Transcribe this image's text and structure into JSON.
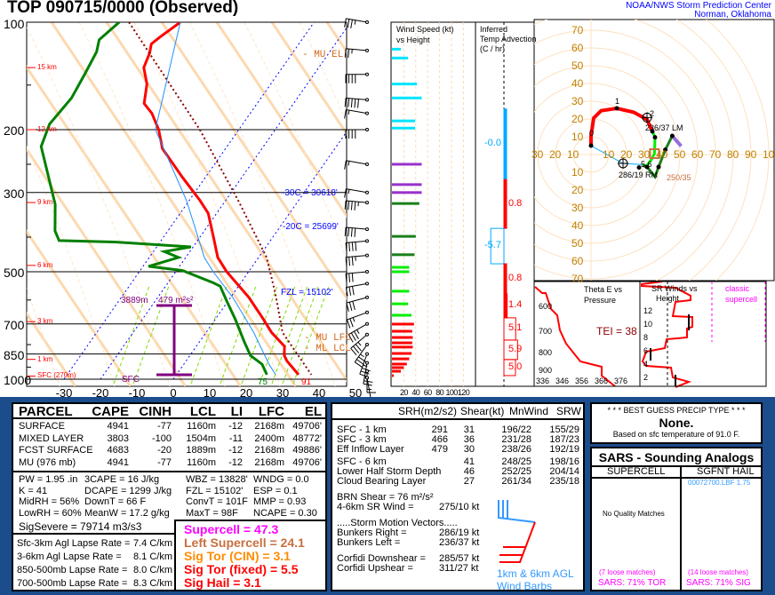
{
  "header": {
    "title": "TOP   090715/0000  (Observed)",
    "org": "NOAA/NWS Storm Prediction Center",
    "loc": "Norman, Oklahoma"
  },
  "skewt": {
    "pressure_labels": [
      "100",
      "200",
      "300",
      "500",
      "700",
      "850",
      "1000"
    ],
    "height_labels": [
      {
        "p": 134,
        "t": "15 km"
      },
      {
        "p": 200,
        "t": "12 km"
      },
      {
        "p": 320,
        "t": "9 km"
      },
      {
        "p": 480,
        "t": "6 km"
      },
      {
        "p": 690,
        "t": "3 km"
      },
      {
        "p": 880,
        "t": "1 km"
      },
      {
        "p": 980,
        "t": "SFC (270m)"
      }
    ],
    "temp_ticks": [
      "-30",
      "-20",
      "-10",
      "0",
      "10",
      "20",
      "30",
      "40",
      "50"
    ],
    "mu_el": "- MU EL",
    "mu_lfc": "- MU LFC",
    "ml_lcl": "- ML LCL",
    "iso30": "-30C = 30618'",
    "iso20": "-20C = 25699'",
    "fzl": "FZL = 15102'",
    "eff_top": "3889m",
    "eff_srh": "479 m²s²",
    "sfc": "SFC",
    "sfc_td": "75",
    "sfc_t": "91"
  },
  "chart_data": {
    "type": "line",
    "title": "Skew-T log-P sounding",
    "xlabel": "Temperature (C)",
    "ylabel": "Pressure (mb)",
    "xlim": [
      -30,
      50
    ],
    "ylim": [
      1000,
      100
    ],
    "series": [
      {
        "name": "temperature",
        "color": "#ff0000",
        "p": [
          100,
          110,
          115,
          122,
          134,
          149,
          169,
          180,
          200,
          226,
          272,
          316,
          343,
          401,
          456,
          500,
          590,
          670,
          740,
          809,
          858,
          888,
          971
        ],
        "t": [
          -66.7,
          -69.4,
          -70.5,
          -69.2,
          -68,
          -64,
          -61,
          -57,
          -52,
          -47.3,
          -36.3,
          -27,
          -22.3,
          -16.2,
          -11.2,
          -6,
          5,
          12.4,
          18,
          24.2,
          25.9,
          27.6,
          33.5
        ]
      },
      {
        "name": "dewpoint",
        "color": "#008000",
        "p": [
          100,
          112,
          121,
          139,
          163,
          193,
          223,
          324,
          384,
          409,
          413,
          426,
          439,
          456,
          483,
          496,
          537,
          549,
          606,
          681,
          786,
          858,
          908,
          971
        ],
        "t": [
          -83.5,
          -85.6,
          -84,
          -83,
          -82,
          -83,
          -81,
          -66,
          -61,
          -58,
          -42,
          -20.6,
          -27,
          -22,
          -28.5,
          -18.4,
          -7.6,
          -5,
          -0.2,
          5.6,
          12.3,
          16.6,
          21.5,
          24.8
        ]
      },
      {
        "name": "wetbulb",
        "color": "#1e90ff",
        "p": [
          100,
          200,
          316,
          456,
          500,
          590,
          740,
          908,
          971
        ],
        "t": [
          -66.7,
          -52.9,
          -30.7,
          -14.9,
          -9.7,
          0.6,
          13.1,
          23.4,
          27.2
        ]
      },
      {
        "name": "parcel",
        "color": "#8b0000",
        "p": [
          100,
          200,
          316,
          456,
          575,
          740,
          971
        ],
        "t": [
          -80.8,
          -40.7,
          -16.5,
          2.2,
          11.5,
          21,
          37
        ]
      }
    ],
    "wind_barbs": [
      {
        "p": 100,
        "d": 280,
        "s": 35
      },
      {
        "p": 120,
        "d": 275,
        "s": 25
      },
      {
        "p": 140,
        "d": 270,
        "s": 40
      },
      {
        "p": 165,
        "d": 275,
        "s": 50
      },
      {
        "p": 180,
        "d": 280,
        "s": 15
      },
      {
        "p": 200,
        "d": 270,
        "s": 40
      },
      {
        "p": 250,
        "d": 280,
        "s": 15
      },
      {
        "p": 300,
        "d": 280,
        "s": 15
      },
      {
        "p": 320,
        "d": 275,
        "s": 45
      },
      {
        "p": 380,
        "d": 275,
        "s": 40
      },
      {
        "p": 410,
        "d": 265,
        "s": 40
      },
      {
        "p": 450,
        "d": 265,
        "s": 35
      },
      {
        "p": 500,
        "d": 265,
        "s": 30
      },
      {
        "p": 540,
        "d": 260,
        "s": 30
      },
      {
        "p": 590,
        "d": 255,
        "s": 28
      },
      {
        "p": 650,
        "d": 250,
        "s": 27
      },
      {
        "p": 700,
        "d": 240,
        "s": 33
      },
      {
        "p": 750,
        "d": 230,
        "s": 35
      },
      {
        "p": 800,
        "d": 215,
        "s": 34
      },
      {
        "p": 850,
        "d": 200,
        "s": 33
      },
      {
        "p": 900,
        "d": 190,
        "s": 25
      },
      {
        "p": 950,
        "d": 180,
        "s": 15
      },
      {
        "p": 990,
        "d": 170,
        "s": 5
      }
    ],
    "wind_speed": {
      "title1": "Wind Speed (kt)",
      "title2": "vs Height",
      "ticks": [
        "20",
        "40",
        "60",
        "80",
        "100",
        "120"
      ],
      "bars": [
        {
          "p": 119,
          "s": 15,
          "c": "#00e5ff"
        },
        {
          "p": 126,
          "s": 27,
          "c": "#00e5ff"
        },
        {
          "p": 149,
          "s": 42,
          "c": "#00e5ff"
        },
        {
          "p": 163,
          "s": 50,
          "c": "#00e5ff"
        },
        {
          "p": 189,
          "s": 39,
          "c": "#00e5ff"
        },
        {
          "p": 198,
          "s": 39,
          "c": "#00e5ff"
        },
        {
          "p": 250,
          "s": 50,
          "c": "#9932cc"
        },
        {
          "p": 285,
          "s": 50,
          "c": "#9932cc"
        },
        {
          "p": 300,
          "s": 50,
          "c": "#9932cc"
        },
        {
          "p": 322,
          "s": 46,
          "c": "#1a7f1a"
        },
        {
          "p": 398,
          "s": 40,
          "c": "#1a7f1a"
        },
        {
          "p": 448,
          "s": 38,
          "c": "#1a7f1a"
        },
        {
          "p": 486,
          "s": 29,
          "c": "#00ee00"
        },
        {
          "p": 500,
          "s": 29,
          "c": "#00ee00"
        },
        {
          "p": 567,
          "s": 29,
          "c": "#00ee00"
        },
        {
          "p": 615,
          "s": 27,
          "c": "#00ee00"
        },
        {
          "p": 662,
          "s": 33,
          "c": "#00ee00"
        },
        {
          "p": 701,
          "s": 37,
          "c": "#ff0000"
        },
        {
          "p": 734,
          "s": 34,
          "c": "#ff0000"
        },
        {
          "p": 764,
          "s": 35,
          "c": "#ff0000"
        },
        {
          "p": 791,
          "s": 34,
          "c": "#ff0000"
        },
        {
          "p": 813,
          "s": 35,
          "c": "#ff0000"
        },
        {
          "p": 847,
          "s": 33,
          "c": "#ff0000"
        },
        {
          "p": 877,
          "s": 29,
          "c": "#ff0000"
        },
        {
          "p": 907,
          "s": 25,
          "c": "#ff0000"
        },
        {
          "p": 928,
          "s": 20,
          "c": "#ff0000"
        },
        {
          "p": 950,
          "s": 15,
          "c": "#ff0000"
        },
        {
          "p": 977,
          "s": 3,
          "c": "#ff0000"
        }
      ]
    },
    "temp_advection": {
      "title1": "Inferred",
      "title2": "Temp Advection",
      "title3": "(C / hr)",
      "layers": [
        {
          "top": 175,
          "bot": 276,
          "v": -0.0,
          "label": "-0.0"
        },
        {
          "top": 276,
          "bot": 378,
          "v": 0.8,
          "label": "0.8"
        },
        {
          "top": 378,
          "bot": 475,
          "v": -5.7,
          "label": "-5.7"
        },
        {
          "top": 475,
          "bot": 577,
          "v": 0.8,
          "label": "0.8"
        },
        {
          "top": 577,
          "bot": 673,
          "v": 1.4,
          "label": "1.4"
        },
        {
          "top": 673,
          "bot": 777,
          "v": 5.1,
          "label": "5.1"
        },
        {
          "top": 777,
          "bot": 881,
          "v": 5.9,
          "label": "5.9"
        },
        {
          "top": 881,
          "bot": 977,
          "v": 5.0,
          "label": "5.0"
        }
      ]
    },
    "hodograph": {
      "rings": [
        "10",
        "20",
        "30",
        "40",
        "50",
        "60",
        "70"
      ],
      "xticks_left": [
        "30",
        "20",
        "10"
      ],
      "xticks_right": [
        "10",
        "20",
        "30",
        "40",
        "50",
        "60",
        "70",
        "80",
        "90",
        "100"
      ],
      "segments": [
        {
          "c": "#ff0000",
          "w": 4,
          "pts": [
            [
              0,
              5
            ],
            [
              0,
              10.5
            ],
            [
              1.5,
              20.5
            ],
            [
              5.7,
              24.7
            ],
            [
              14.5,
              26
            ],
            [
              24,
              23.8
            ],
            [
              31.5,
              19.7
            ],
            [
              34.5,
              13
            ]
          ]
        },
        {
          "c": "#00ee00",
          "w": 3,
          "pts": [
            [
              34.5,
              13
            ],
            [
              36,
              9.7
            ],
            [
              35.7,
              0.5
            ],
            [
              34,
              -2.8
            ],
            [
              31.5,
              -6.2
            ],
            [
              29,
              -6.2
            ]
          ]
        },
        {
          "c": "#1a7f1a",
          "w": 3,
          "pts": [
            [
              29,
              -6.2
            ],
            [
              31.5,
              -7
            ],
            [
              36,
              -12.5
            ],
            [
              38,
              -7
            ],
            [
              41.8,
              2.7
            ],
            [
              45.7,
              10.5
            ]
          ]
        },
        {
          "c": "#9370db",
          "w": 4,
          "pts": [
            [
              45.7,
              10.5
            ],
            [
              50.7,
              4.7
            ]
          ]
        },
        {
          "c": "#00aaff",
          "w": 1,
          "pts": [
            [
              0,
              5
            ],
            [
              18,
              -5
            ],
            [
              29,
              -5.7
            ]
          ]
        }
      ],
      "dots": [
        [
          14.5,
          26
        ],
        [
          34.5,
          13
        ],
        [
          36,
          9.7
        ],
        [
          41.8,
          2.7
        ],
        [
          45.7,
          10.5
        ],
        [
          38,
          -7
        ],
        [
          31.5,
          -7
        ],
        [
          27,
          -7.3
        ],
        [
          0,
          5
        ]
      ],
      "hour_labels": [
        {
          "u": 14.5,
          "v": 26,
          "t": "1"
        },
        {
          "u": 34,
          "v": 19,
          "t": "2"
        },
        {
          "u": 0,
          "v": 8,
          "t": "0"
        },
        {
          "u": 29,
          "v": -3,
          "t": "5 6"
        }
      ],
      "lm": {
        "u": 31.5,
        "v": 20.8,
        "label": "236/37 LM"
      },
      "rm": {
        "u": 18,
        "v": -5,
        "label": "286/19 RM"
      },
      "mean": {
        "u": 35.7,
        "v": 0.5,
        "label": "250/35"
      }
    },
    "theta_e": {
      "title1": "Theta E vs",
      "title2": "Pressure",
      "tei": "TEI = 38",
      "plabels": [
        "600",
        "700",
        "800",
        "900"
      ],
      "xlabels": [
        "336",
        "346",
        "356",
        "366",
        "376"
      ]
    },
    "sr_winds": {
      "title1": "SR Winds vs",
      "title2": "Height",
      "class1": "classic",
      "class2": "supercell",
      "hlabels": [
        "2",
        "4",
        "6",
        "8",
        "10",
        "12"
      ]
    }
  },
  "parcel": {
    "headers": [
      "PARCEL",
      "CAPE",
      "CINH",
      "LCL",
      "LI",
      "LFC",
      "EL"
    ],
    "rows": [
      [
        "SURFACE",
        "4941",
        "-77",
        "1160m",
        "-12",
        "2168m",
        "49706'"
      ],
      [
        "MIXED LAYER",
        "3803",
        "-100",
        "1504m",
        "-11",
        "2400m",
        "48772'"
      ],
      [
        "FCST SURFACE",
        "4683",
        "-20",
        "1889m",
        "-12",
        "2168m",
        "49886'"
      ],
      [
        "MU    (976 mb)",
        "4941",
        "-77",
        "1160m",
        "-12",
        "2168m",
        "49706'"
      ]
    ]
  },
  "indices": [
    [
      "PW = 1.95 .in",
      "3CAPE = 16 J/kg",
      "WBZ = 13828'",
      "WNDG = 0.0"
    ],
    [
      "K = 41",
      "DCAPE = 1299 J/kg",
      "FZL = 15102'",
      "ESP = 0.1"
    ],
    [
      "MidRH = 56%",
      "DownT = 66 F",
      "ConvT = 101F",
      "MMP = 0.93"
    ],
    [
      "LowRH = 60%",
      "MeanW = 17.2 g/kg",
      "MaxT = 98F",
      "NCAPE = 0.30"
    ]
  ],
  "sigsevere": "SigSevere = 79714 m3/s3",
  "lapse": [
    [
      "Sfc-3km Agl Lapse Rate =",
      "7.4 C/km"
    ],
    [
      "3-6km Agl Lapse Rate =",
      "8.1 C/km"
    ],
    [
      "850-500mb Lapse Rate =",
      "8.0 C/km"
    ],
    [
      "700-500mb Lapse Rate =",
      "8.3 C/km"
    ]
  ],
  "composite": [
    {
      "t": "Supercell = 47.3",
      "c": "#ff00ff"
    },
    {
      "t": "Left Supercell = 24.1",
      "c": "#c87040"
    },
    {
      "t": "Sig Tor (CIN) = 3.1",
      "c": "#ff8c00"
    },
    {
      "t": "Sig Tor (fixed) = 5.5",
      "c": "#ff0000"
    },
    {
      "t": "Sig Hail = 3.1",
      "c": "#ff0000"
    }
  ],
  "kinematics": {
    "headers": [
      "SRH(m2/s2)",
      "Shear(kt)",
      "MnWind",
      "SRW"
    ],
    "rows1": [
      [
        "SFC - 1 km",
        "291",
        "31",
        "196/22",
        "155/29"
      ],
      [
        "SFC - 3 km",
        "466",
        "36",
        "231/28",
        "187/23"
      ],
      [
        "Eff Inflow Layer",
        "479",
        "30",
        "238/26",
        "192/19"
      ]
    ],
    "rows2": [
      [
        "SFC - 6 km",
        "",
        "41",
        "248/25",
        "198/16"
      ],
      [
        "Lower Half Storm Depth",
        "",
        "46",
        "252/25",
        "204/14"
      ],
      [
        "Cloud Bearing Layer",
        "",
        "27",
        "261/34",
        "235/18"
      ]
    ],
    "brn": "BRN Shear =  76 m²/s²",
    "sr46_label": "4-6km SR Wind =",
    "sr46": "275/10 kt",
    "smv": ".....Storm Motion Vectors.....",
    "br_label": "Bunkers Right =",
    "br": "286/19 kt",
    "bl_label": "Bunkers Left =",
    "bl": "236/37 kt",
    "cd_label": "Corfidi Downshear =",
    "cd": "285/57 kt",
    "cu_label": "Corfidi Upshear =",
    "cu": "311/27 kt",
    "barb1": "1km & 6km AGL",
    "barb2": "Wind Barbs"
  },
  "precip": {
    "title": "* * * BEST GUESS PRECIP TYPE * * *",
    "type": "None.",
    "basis": "Based on sfc temperature of 91.0 F."
  },
  "sars": {
    "title": "SARS - Sounding Analogs",
    "col1": "SUPERCELL",
    "col2": "SGFNT HAIL",
    "sc_text": "No Quality Matches",
    "hail_match": "00072700.LBF   1.75",
    "sc_loose": "(7 loose matches)",
    "sc_pct": "SARS:  71% TOR",
    "hail_loose": "(14 loose matches)",
    "hail_pct": "SARS:  71% SIG"
  }
}
